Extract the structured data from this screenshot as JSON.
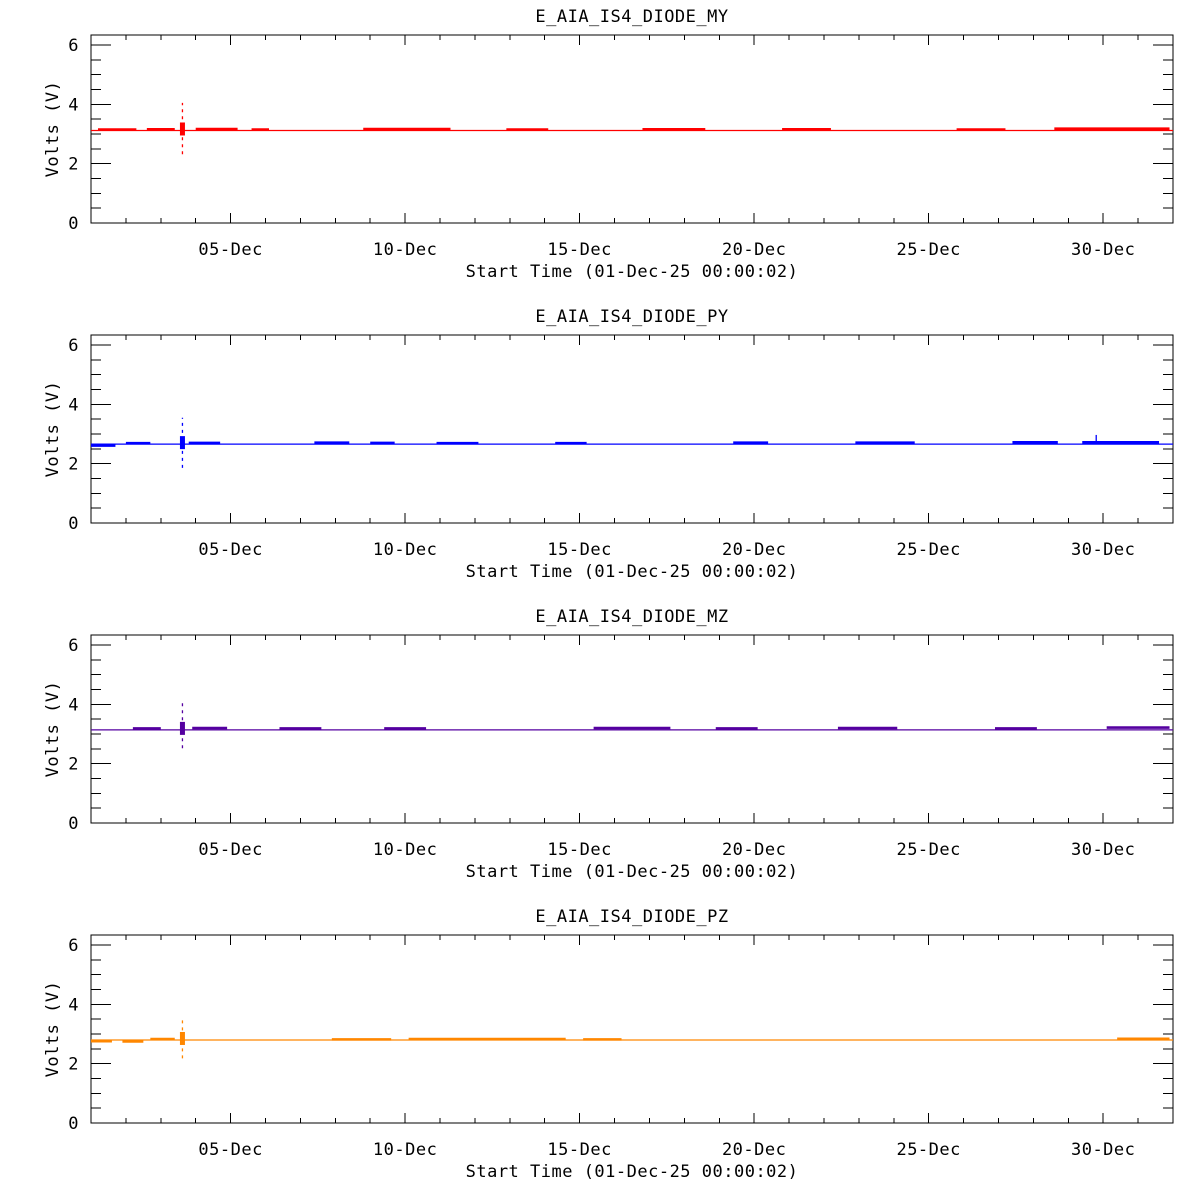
{
  "page": {
    "background": "#ffffff",
    "text_color": "#000000",
    "description": "Four stacked time-series voltage trend plots"
  },
  "chart_data": [
    {
      "type": "line",
      "title": "E_AIA_IS4_DIODE_MY",
      "ylabel": "Volts (V)",
      "xlabel": "Start Time (01-Dec-25 00:00:02)",
      "color": "#ff0000",
      "ylim": [
        0,
        6.34
      ],
      "y_major_ticks": [
        0,
        2,
        4,
        6
      ],
      "y_minor_step": 0.5,
      "x_days": 31,
      "x_start": "01-Dec",
      "x_major_tick_days": [
        5,
        10,
        15,
        20,
        25,
        30
      ],
      "x_tick_labels": [
        "05-Dec",
        "10-Dec",
        "15-Dec",
        "20-Dec",
        "25-Dec",
        "30-Dec"
      ],
      "baseline_volts": 3.12,
      "spike": {
        "day": 3.62,
        "from_volts": 2.32,
        "to_volts": 4.05
      },
      "noise_segments": [
        [
          1.2,
          2.3,
          0.03
        ],
        [
          2.6,
          3.4,
          0.04
        ],
        [
          4.0,
          5.2,
          0.05
        ],
        [
          5.6,
          6.1,
          0.03
        ],
        [
          8.8,
          11.3,
          0.05
        ],
        [
          12.9,
          14.1,
          0.03
        ],
        [
          16.8,
          18.6,
          0.04
        ],
        [
          20.8,
          22.2,
          0.04
        ],
        [
          25.8,
          27.2,
          0.03
        ],
        [
          28.6,
          31.9,
          0.06
        ]
      ]
    },
    {
      "type": "line",
      "title": "E_AIA_IS4_DIODE_PY",
      "ylabel": "Volts (V)",
      "xlabel": "Start Time (01-Dec-25 00:00:02)",
      "color": "#0000ff",
      "ylim": [
        0,
        6.34
      ],
      "y_major_ticks": [
        0,
        2,
        4,
        6
      ],
      "y_minor_step": 0.5,
      "x_days": 31,
      "x_start": "01-Dec",
      "x_major_tick_days": [
        5,
        10,
        15,
        20,
        25,
        30
      ],
      "x_tick_labels": [
        "05-Dec",
        "10-Dec",
        "15-Dec",
        "20-Dec",
        "25-Dec",
        "30-Dec"
      ],
      "baseline_volts": 2.66,
      "spike": {
        "day": 3.62,
        "from_volts": 1.86,
        "to_volts": 3.55
      },
      "extra_spike": {
        "day": 29.8,
        "to_volts": 2.97
      },
      "noise_segments": [
        [
          1.0,
          1.7,
          -0.05
        ],
        [
          2.0,
          2.7,
          0.03
        ],
        [
          3.8,
          4.7,
          0.04
        ],
        [
          7.4,
          8.4,
          0.05
        ],
        [
          9.0,
          9.7,
          0.04
        ],
        [
          10.9,
          12.1,
          0.03
        ],
        [
          14.3,
          15.2,
          0.03
        ],
        [
          19.4,
          20.4,
          0.05
        ],
        [
          22.9,
          24.6,
          0.05
        ],
        [
          27.4,
          28.7,
          0.06
        ],
        [
          29.4,
          31.6,
          0.06
        ]
      ]
    },
    {
      "type": "line",
      "title": "E_AIA_IS4_DIODE_MZ",
      "ylabel": "Volts (V)",
      "xlabel": "Start Time (01-Dec-25 00:00:02)",
      "color": "#5500a0",
      "ylim": [
        0,
        6.34
      ],
      "y_major_ticks": [
        0,
        2,
        4,
        6
      ],
      "y_minor_step": 0.5,
      "x_days": 31,
      "x_start": "01-Dec",
      "x_major_tick_days": [
        5,
        10,
        15,
        20,
        25,
        30
      ],
      "x_tick_labels": [
        "05-Dec",
        "10-Dec",
        "15-Dec",
        "20-Dec",
        "25-Dec",
        "30-Dec"
      ],
      "baseline_volts": 3.14,
      "spike": {
        "day": 3.62,
        "from_volts": 2.52,
        "to_volts": 4.08
      },
      "noise_segments": [
        [
          2.2,
          3.0,
          0.05
        ],
        [
          3.9,
          4.9,
          0.06
        ],
        [
          6.4,
          7.6,
          0.05
        ],
        [
          9.4,
          10.6,
          0.05
        ],
        [
          15.4,
          17.6,
          0.06
        ],
        [
          18.9,
          20.1,
          0.05
        ],
        [
          22.4,
          24.1,
          0.06
        ],
        [
          26.9,
          28.1,
          0.05
        ],
        [
          30.1,
          31.9,
          0.08
        ]
      ]
    },
    {
      "type": "line",
      "title": "E_AIA_IS4_DIODE_PZ",
      "ylabel": "Volts (V)",
      "xlabel": "Start Time (01-Dec-25 00:00:02)",
      "color": "#ff8700",
      "ylim": [
        0,
        6.34
      ],
      "y_major_ticks": [
        0,
        2,
        4,
        6
      ],
      "y_minor_step": 0.5,
      "x_days": 31,
      "x_start": "01-Dec",
      "x_major_tick_days": [
        5,
        10,
        15,
        20,
        25,
        30
      ],
      "x_tick_labels": [
        "05-Dec",
        "10-Dec",
        "15-Dec",
        "20-Dec",
        "25-Dec",
        "30-Dec"
      ],
      "baseline_volts": 2.8,
      "spike": {
        "day": 3.62,
        "from_volts": 2.18,
        "to_volts": 3.48
      },
      "noise_segments": [
        [
          1.0,
          1.6,
          -0.04
        ],
        [
          1.9,
          2.5,
          -0.05
        ],
        [
          2.7,
          3.4,
          0.03
        ],
        [
          7.9,
          9.6,
          0.02
        ],
        [
          10.1,
          14.6,
          0.03
        ],
        [
          15.1,
          16.2,
          0.02
        ],
        [
          30.4,
          31.9,
          0.04
        ]
      ]
    }
  ]
}
